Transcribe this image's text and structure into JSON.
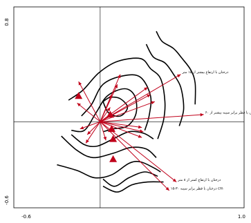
{
  "chart_data": {
    "type": "scatter",
    "title": "",
    "xlabel": "",
    "ylabel": "",
    "xlim": [
      -0.6,
      1.0
    ],
    "ylim": [
      -0.6,
      0.8
    ],
    "x_ticks": [
      "-0.6",
      "1.0"
    ],
    "y_ticks": [
      "0.8",
      "-0.6"
    ],
    "grid": false,
    "colors": {
      "arrows": "#c0001a",
      "contours": "#000000",
      "frame": "#000000"
    },
    "arrows": [
      {
        "label": "درختان با ارتفاع بیشتر از ۱۵ متر",
        "x": 0.56,
        "y": 0.33
      },
      {
        "label": "درختان با قطر برابر سینه بیشتر از ۶۰ cm",
        "x": 0.72,
        "y": 0.05
      },
      {
        "label": "درختان با ارتفاع کمتر از ۸ متر",
        "x": 0.53,
        "y": -0.42
      },
      {
        "label": "درختان با قطر برابر سینه ۳۰-۱۵ cm",
        "x": 0.48,
        "y": -0.48
      },
      {
        "label": "",
        "x": 0.33,
        "y": 0.24
      },
      {
        "label": "",
        "x": 0.35,
        "y": 0.19
      },
      {
        "label": "",
        "x": 0.38,
        "y": 0.14
      },
      {
        "label": "",
        "x": 0.14,
        "y": 0.33
      },
      {
        "label": "",
        "x": 0.12,
        "y": 0.26
      },
      {
        "label": "",
        "x": 0.08,
        "y": 0.19
      },
      {
        "label": "",
        "x": 0.07,
        "y": 0.1
      },
      {
        "label": "",
        "x": 0.29,
        "y": -0.04
      },
      {
        "label": "",
        "x": 0.3,
        "y": -0.07
      },
      {
        "label": "",
        "x": 0.29,
        "y": -0.11
      },
      {
        "label": "",
        "x": 0.04,
        "y": -0.13
      },
      {
        "label": "",
        "x": -0.15,
        "y": 0.28
      },
      {
        "label": "",
        "x": -0.16,
        "y": 0.13
      },
      {
        "label": "",
        "x": -0.14,
        "y": -0.05
      },
      {
        "label": "",
        "x": -0.09,
        "y": -0.09
      },
      {
        "label": "",
        "x": -0.1,
        "y": -0.15
      }
    ],
    "centroids": [
      {
        "label": "",
        "x": -0.15,
        "y": 0.18
      },
      {
        "label": "",
        "x": 0.07,
        "y": 0.05
      },
      {
        "label": "",
        "x": 0.08,
        "y": -0.05
      },
      {
        "label": "",
        "x": 0.09,
        "y": -0.12
      },
      {
        "label": "",
        "x": 0.09,
        "y": -0.26
      }
    ],
    "contours": [
      [
        [
          0.39,
          0.63
        ],
        [
          0.43,
          0.56
        ],
        [
          0.51,
          0.51
        ],
        [
          0.57,
          0.44
        ],
        [
          0.63,
          0.36
        ],
        [
          0.66,
          0.27
        ],
        [
          0.66,
          0.12
        ]
      ],
      [
        [
          0.32,
          0.54
        ],
        [
          0.37,
          0.45
        ],
        [
          0.45,
          0.41
        ],
        [
          0.51,
          0.33
        ],
        [
          0.56,
          0.24
        ],
        [
          0.58,
          0.09
        ],
        [
          0.55,
          -0.03
        ]
      ],
      [
        [
          -0.22,
          0.15
        ],
        [
          -0.12,
          0.22
        ],
        [
          -0.01,
          0.34
        ],
        [
          0.12,
          0.42
        ],
        [
          0.28,
          0.44
        ],
        [
          0.35,
          0.37
        ],
        [
          0.42,
          0.3
        ],
        [
          0.45,
          0.14
        ],
        [
          0.44,
          0.01
        ],
        [
          0.4,
          -0.12
        ]
      ],
      [
        [
          -0.13,
          0.04
        ],
        [
          -0.06,
          0.12
        ],
        [
          0.02,
          0.26
        ],
        [
          0.16,
          0.32
        ],
        [
          0.28,
          0.31
        ],
        [
          0.35,
          0.18
        ],
        [
          0.34,
          0.04
        ],
        [
          0.31,
          -0.06
        ]
      ],
      [
        [
          -0.2,
          -0.06
        ],
        [
          -0.11,
          -0.06
        ],
        [
          -0.03,
          0.06
        ],
        [
          0.05,
          0.18
        ],
        [
          0.17,
          0.23
        ],
        [
          0.24,
          0.18
        ],
        [
          0.25,
          0.06
        ],
        [
          0.19,
          -0.03
        ],
        [
          0.09,
          -0.05
        ],
        [
          0.02,
          -0.07
        ]
      ],
      [
        [
          0.02,
          0.14
        ],
        [
          0.06,
          0.06
        ],
        [
          0.14,
          0.04
        ],
        [
          0.19,
          0.1
        ],
        [
          0.14,
          0.16
        ],
        [
          0.07,
          0.17
        ],
        [
          0.02,
          0.14
        ]
      ],
      [
        [
          -0.2,
          -0.09
        ],
        [
          -0.11,
          -0.16
        ],
        [
          -0.02,
          -0.17
        ],
        [
          0.09,
          -0.12
        ],
        [
          0.2,
          -0.07
        ],
        [
          0.3,
          -0.08
        ],
        [
          0.37,
          -0.12
        ]
      ],
      [
        [
          -0.27,
          -0.1
        ],
        [
          -0.16,
          -0.2
        ],
        [
          -0.05,
          -0.25
        ],
        [
          0.09,
          -0.22
        ],
        [
          0.21,
          -0.18
        ],
        [
          0.32,
          -0.19
        ],
        [
          0.39,
          -0.25
        ]
      ],
      [
        [
          -0.3,
          -0.3
        ],
        [
          -0.16,
          -0.34
        ],
        [
          -0.04,
          -0.39
        ],
        [
          0.08,
          -0.37
        ],
        [
          0.2,
          -0.29
        ],
        [
          0.28,
          -0.28
        ],
        [
          0.37,
          -0.32
        ],
        [
          0.42,
          -0.35
        ]
      ],
      [
        [
          0.02,
          -0.4
        ],
        [
          0.1,
          -0.45
        ],
        [
          0.2,
          -0.39
        ],
        [
          0.31,
          -0.35
        ],
        [
          0.4,
          -0.38
        ]
      ],
      [
        [
          0.02,
          -0.45
        ],
        [
          0.12,
          -0.49
        ],
        [
          0.22,
          -0.44
        ],
        [
          0.33,
          -0.42
        ],
        [
          0.44,
          -0.42
        ]
      ]
    ]
  }
}
